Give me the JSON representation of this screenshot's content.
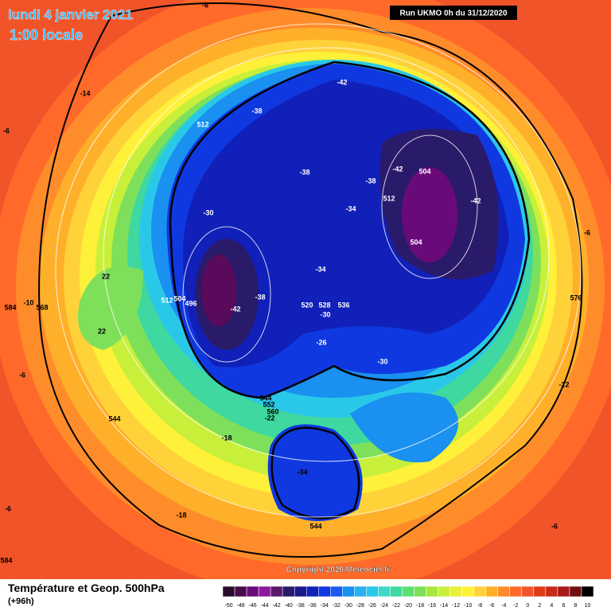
{
  "header": {
    "date": "lundi 4 janvier 2021",
    "time": "1:00 locale",
    "run": "Run UKMO 0h du 31/12/2020"
  },
  "footer": {
    "copyright": "Copyright 2020 Meteociel.fr",
    "title": "Température et Geop. 500hPa",
    "lead": "(+96h)"
  },
  "map_labels": [
    "-6",
    "-14",
    "-6",
    "-42",
    "-38",
    "512",
    "-38",
    "-38",
    "-42",
    "504",
    "512",
    "-42",
    "-34",
    "-30",
    "-6",
    "504",
    "-34",
    "22",
    "-38",
    "512",
    "504",
    "496",
    "-42",
    "520",
    "528",
    "536",
    "-30",
    "576",
    "584",
    "-10",
    "568",
    "22",
    "-26",
    "-30",
    "-6",
    "-22",
    "544",
    "552",
    "560",
    "-22",
    "544",
    "-18",
    "-34",
    "-6",
    "-18",
    "544",
    "-6",
    "584"
  ],
  "scale": {
    "values": [
      -50,
      -48,
      -46,
      -44,
      -42,
      -40,
      -38,
      -36,
      -34,
      -32,
      -30,
      -28,
      -26,
      -24,
      -22,
      -20,
      -18,
      -16,
      -14,
      -12,
      -10,
      -8,
      -6,
      -4,
      -2,
      0,
      2,
      4,
      6,
      8,
      10
    ],
    "colors": [
      "#2a0a2a",
      "#4a0a4a",
      "#6a0a7a",
      "#8a1a9a",
      "#5a1a6a",
      "#2a1a6a",
      "#1a1a8a",
      "#1020b8",
      "#1038e0",
      "#1a5af0",
      "#1a90f0",
      "#2ab0f0",
      "#2ac8e8",
      "#3ed8c8",
      "#3ed8a0",
      "#5ae070",
      "#7ee05a",
      "#a8e83a",
      "#c8f03a",
      "#e8f03a",
      "#fff03a",
      "#ffd23a",
      "#ffb02a",
      "#ff8c2a",
      "#ff6a2a",
      "#f2542a",
      "#e03a1a",
      "#c82a1a",
      "#a81a1a",
      "#701010",
      "#000000"
    ]
  }
}
